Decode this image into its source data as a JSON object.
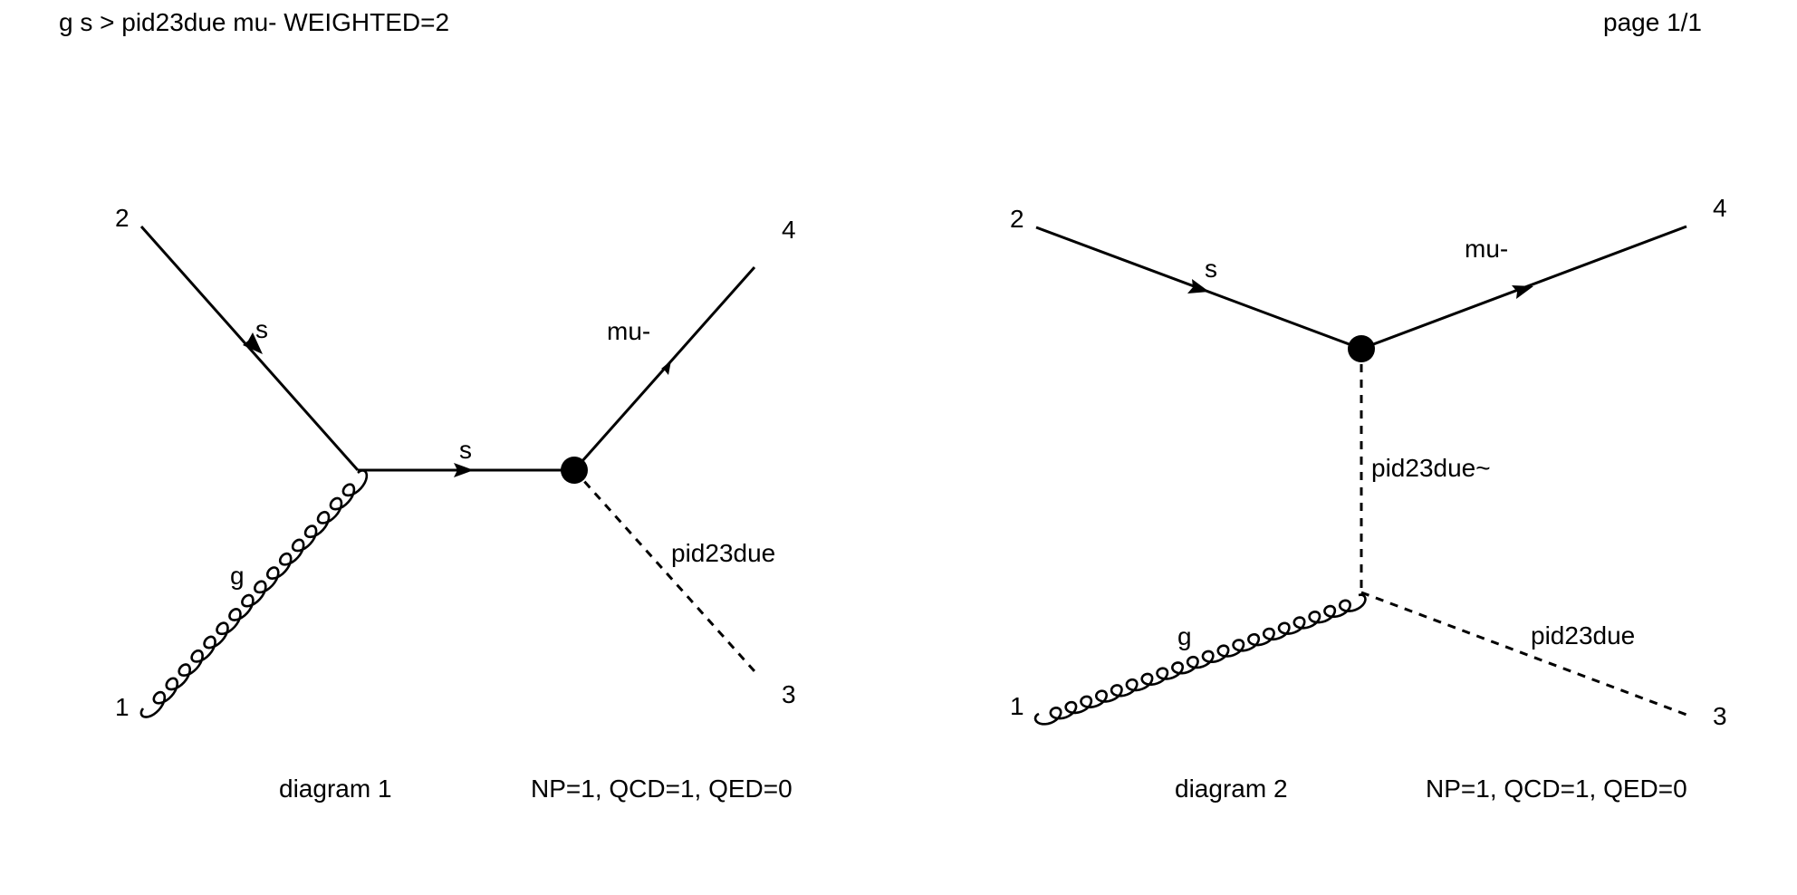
{
  "header": {
    "process": "g s > pid23due mu- WEIGHTED=2",
    "page": "page 1/1"
  },
  "diagrams": [
    {
      "caption": "diagram 1",
      "couplings": "NP=1, QCD=1, QED=0",
      "external_labels": [
        "1",
        "2",
        "3",
        "4"
      ],
      "particles": {
        "incoming_quark": "s",
        "gluon": "g",
        "internal_propagator": "s",
        "outgoing_lepton": "mu-",
        "outgoing_scalar": "pid23due"
      }
    },
    {
      "caption": "diagram 2",
      "couplings": "NP=1, QCD=1, QED=0",
      "external_labels": [
        "1",
        "2",
        "3",
        "4"
      ],
      "particles": {
        "incoming_quark": "s",
        "gluon": "g",
        "internal_propagator": "pid23due~",
        "outgoing_lepton": "mu-",
        "outgoing_scalar": "pid23due"
      }
    }
  ]
}
